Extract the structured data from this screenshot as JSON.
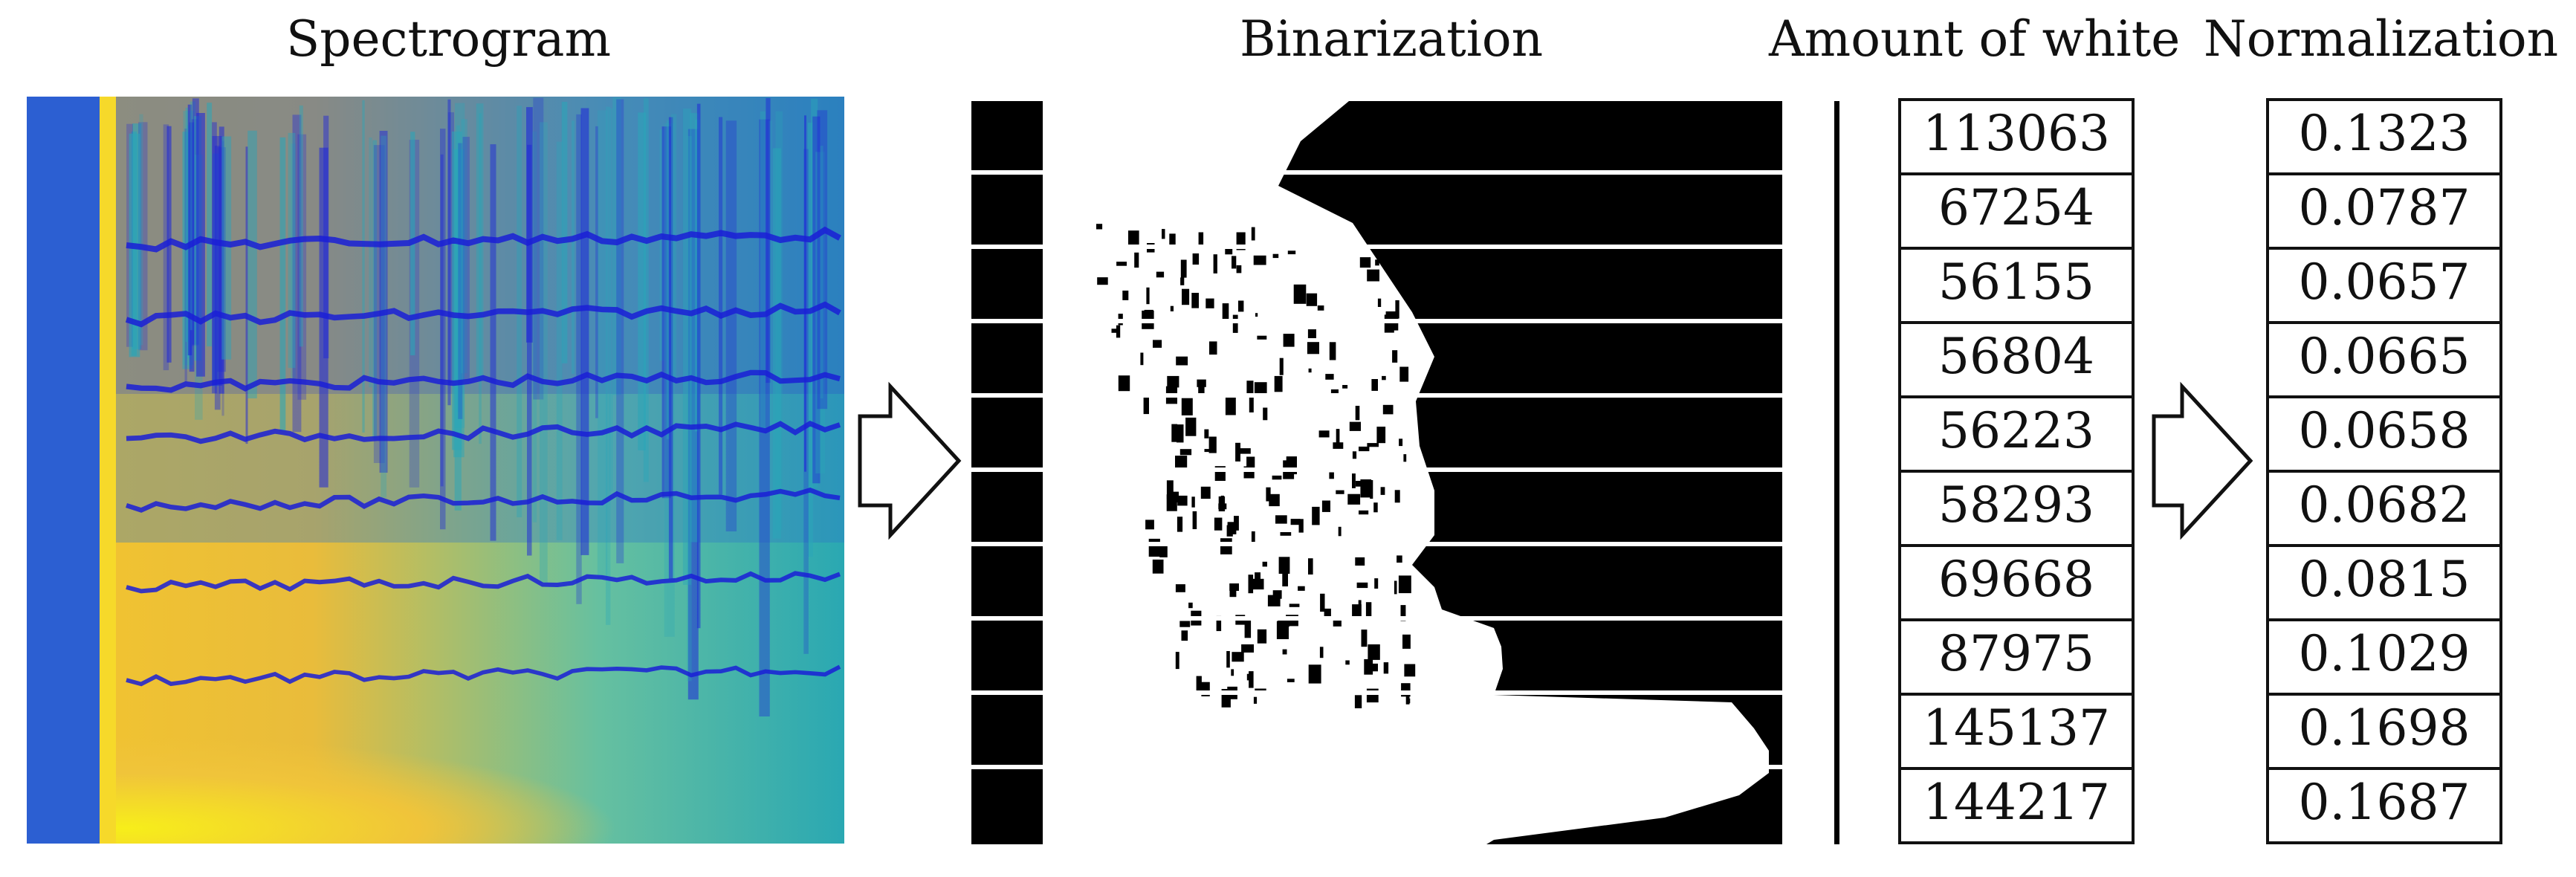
{
  "titles": {
    "spectrogram": "Spectrogram",
    "binarization": "Binarization",
    "amount": "Amount of white",
    "normalization": "Normalization"
  },
  "amount_values": [
    "113063",
    "67254",
    "56155",
    "56804",
    "56223",
    "58293",
    "69668",
    "87975",
    "145137",
    "144217"
  ],
  "normalized_values": [
    "0.1323",
    "0.0787",
    "0.0657",
    "0.0665",
    "0.0658",
    "0.0682",
    "0.0815",
    "0.1029",
    "0.1698",
    "0.1687"
  ],
  "colors": {
    "spectro_yellow": "#f5e21e",
    "spectro_orange": "#f5b830",
    "spectro_teal": "#27b6a6",
    "spectro_blue": "#1f27d8",
    "ink": "#111111"
  },
  "icons": [
    "right-arrow-icon",
    "right-arrow-icon"
  ]
}
